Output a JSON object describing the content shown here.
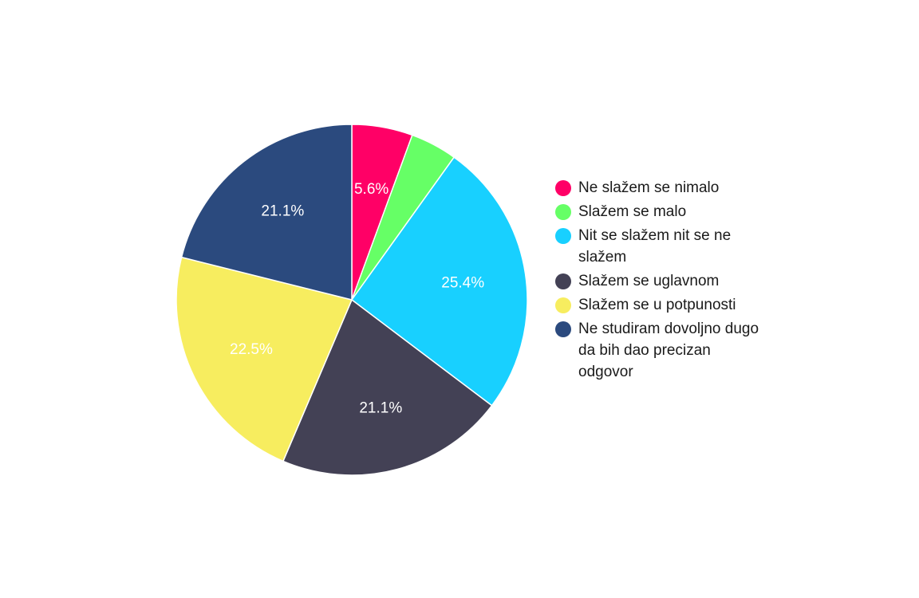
{
  "chart_data": {
    "type": "pie",
    "title": "",
    "start_angle_deg": 0,
    "direction": "clockwise",
    "legend_position": "right",
    "slices": [
      {
        "name": "Ne slažem se nimalo",
        "value": 5.6,
        "label": "5.6%",
        "color": "#ff0066"
      },
      {
        "name": "Slažem se malo",
        "value": 4.3,
        "label": "",
        "color": "#66ff66"
      },
      {
        "name": "Nit se slažem nit se ne slažem",
        "value": 25.4,
        "label": "25.4%",
        "color": "#18d0ff"
      },
      {
        "name": "Slažem se uglavnom",
        "value": 21.1,
        "label": "21.1%",
        "color": "#434155"
      },
      {
        "name": "Slažem se u potpunosti",
        "value": 22.5,
        "label": "22.5%",
        "color": "#f7ed5f"
      },
      {
        "name": "Ne studiram dovoljno dugo da bih dao precizan odgovor",
        "value": 21.1,
        "label": "21.1%",
        "color": "#2b4a7e"
      }
    ]
  }
}
